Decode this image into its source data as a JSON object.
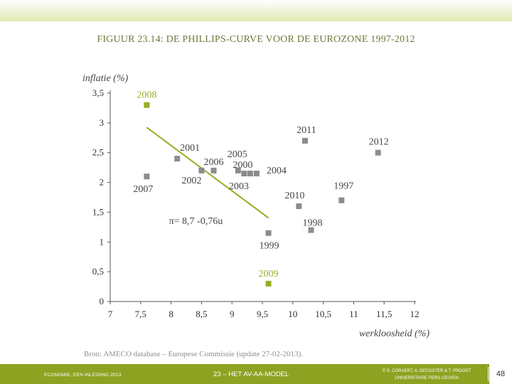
{
  "header": {
    "title": "FIGUUR 23.14: DE PHILLIPS-CURVE VOOR DE EUROZONE 1997-2012"
  },
  "chart_data": {
    "type": "scatter",
    "title": "FIGUUR 23.14: DE PHILLIPS-CURVE VOOR DE EUROZONE 1997-2012",
    "xlabel": "werkloosheid (%)",
    "ylabel": "inflatie (%)",
    "xlim": [
      7,
      12
    ],
    "ylim": [
      0,
      3.5
    ],
    "x_ticks": [
      "7",
      "7,5",
      "8",
      "8,5",
      "9",
      "9,5",
      "10",
      "10,5",
      "11",
      "11,5",
      "12"
    ],
    "y_ticks": [
      "0",
      "0,5",
      "1",
      "1,5",
      "2",
      "2,5",
      "3",
      "3,5"
    ],
    "grid": false,
    "points": [
      {
        "label": "1997",
        "x": 10.8,
        "y": 1.7,
        "highlight": false
      },
      {
        "label": "1998",
        "x": 10.3,
        "y": 1.2,
        "highlight": false
      },
      {
        "label": "1999",
        "x": 9.6,
        "y": 1.15,
        "highlight": false
      },
      {
        "label": "2000",
        "x": 9.2,
        "y": 2.15,
        "highlight": false
      },
      {
        "label": "2001",
        "x": 8.1,
        "y": 2.4,
        "highlight": false
      },
      {
        "label": "2002",
        "x": 8.5,
        "y": 2.2,
        "highlight": false
      },
      {
        "label": "2003",
        "x": 9.3,
        "y": 2.15,
        "highlight": false
      },
      {
        "label": "2004",
        "x": 9.3,
        "y": 2.15,
        "highlight": false
      },
      {
        "label": "2005",
        "x": 9.1,
        "y": 2.2,
        "highlight": false
      },
      {
        "label": "2006",
        "x": 8.7,
        "y": 2.2,
        "highlight": false
      },
      {
        "label": "2007",
        "x": 7.6,
        "y": 2.1,
        "highlight": false
      },
      {
        "label": "2008",
        "x": 7.6,
        "y": 3.3,
        "highlight": true
      },
      {
        "label": "2009",
        "x": 9.6,
        "y": 0.3,
        "highlight": true
      },
      {
        "label": "2010",
        "x": 10.1,
        "y": 1.6,
        "highlight": false
      },
      {
        "label": "2011",
        "x": 10.2,
        "y": 2.7,
        "highlight": false
      },
      {
        "label": "2012",
        "x": 11.4,
        "y": 2.5,
        "highlight": false
      }
    ],
    "trendline": {
      "label": "π= 8,7 -0,76u",
      "intercept": 8.7,
      "slope": -0.76,
      "x_start": 7.6,
      "x_end": 9.6
    },
    "colors": {
      "point": "#8c8c8c",
      "highlight": "#9aab24",
      "trendline": "#9aab24",
      "axis": "#555555",
      "tick_text": "#333333",
      "axis_title": "#444444",
      "point_label": "#444444"
    }
  },
  "source": {
    "text": "Bron: AMECO database – Europese Commissie (update 27-02-2013)."
  },
  "footer": {
    "left": "ECONOMIE, EEN INLEIDING 2013",
    "center": "23 – HET AV-AA-MODEL",
    "right_line1": "© S. CORAERT, A. DECOSTER & T. PROOST",
    "right_line2": "UNIVERSITAIRE PERS LEUVEN",
    "page": "48"
  }
}
